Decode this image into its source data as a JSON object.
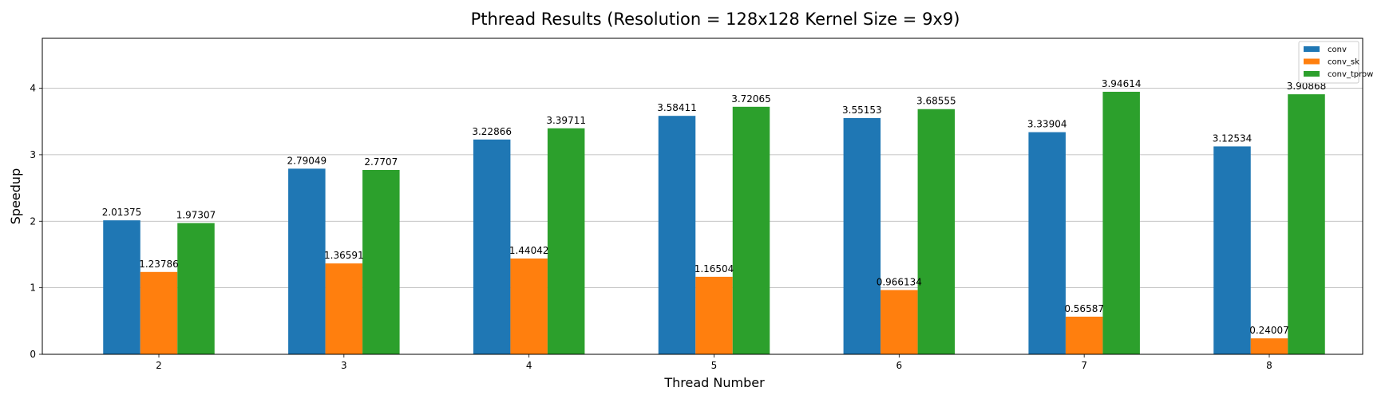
{
  "chart_data": {
    "type": "bar",
    "title": "Pthread Results (Resolution = 128x128 Kernel Size = 9x9)",
    "xlabel": "Thread Number",
    "ylabel": "Speedup",
    "categories": [
      "2",
      "3",
      "4",
      "5",
      "6",
      "7",
      "8"
    ],
    "ylim": [
      0,
      4.75
    ],
    "yticks": [
      0,
      1,
      2,
      3,
      4
    ],
    "grid": "y",
    "legend_position": "top-right",
    "series": [
      {
        "name": "conv",
        "color": "#1f77b4",
        "values": [
          2.01375,
          2.79049,
          3.22866,
          3.58411,
          3.55153,
          3.33904,
          3.12534
        ],
        "labels": [
          "2.01375",
          "2.79049",
          "3.22866",
          "3.58411",
          "3.55153",
          "3.33904",
          "3.12534"
        ]
      },
      {
        "name": "conv_sk",
        "color": "#ff7f0e",
        "values": [
          1.23786,
          1.36591,
          1.44042,
          1.16504,
          0.966134,
          0.56587,
          0.24007
        ],
        "labels": [
          "1.23786",
          "1.36591",
          "1.44042",
          "1.16504",
          "0.966134",
          "0.56587",
          "0.24007"
        ]
      },
      {
        "name": "conv_tprow",
        "color": "#2ca02c",
        "values": [
          1.97307,
          2.7707,
          3.39711,
          3.72065,
          3.68555,
          3.94614,
          3.90868
        ],
        "labels": [
          "1.97307",
          "2.7707",
          "3.39711",
          "3.72065",
          "3.68555",
          "3.94614",
          "3.90868"
        ]
      }
    ]
  }
}
